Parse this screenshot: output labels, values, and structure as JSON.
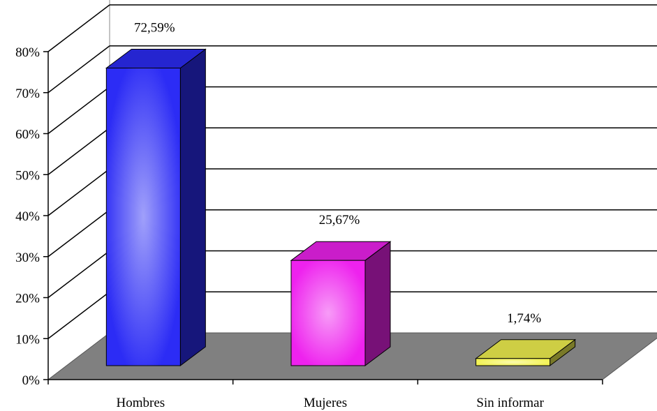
{
  "chart_data": {
    "type": "bar",
    "title": "",
    "xlabel": "",
    "ylabel": "",
    "categories": [
      "Hombres",
      "Mujeres",
      "Sin informar"
    ],
    "values": [
      72.59,
      25.67,
      1.74
    ],
    "data_labels": [
      "72,59%",
      "25,67%",
      "1,74%"
    ],
    "ylim": [
      0,
      80
    ],
    "y_ticks": [
      0,
      10,
      20,
      30,
      40,
      50,
      60,
      70,
      80
    ],
    "y_tick_labels": [
      "0%",
      "10%",
      "20%",
      "30%",
      "40%",
      "50%",
      "60%",
      "70%",
      "80%"
    ],
    "grid": true,
    "legend": "none",
    "three_d": true,
    "colors": {
      "bars": [
        "#2c2cf5",
        "#ee22ee",
        "#f2f250"
      ],
      "floor": "#808080",
      "gridline": "#000000"
    }
  }
}
